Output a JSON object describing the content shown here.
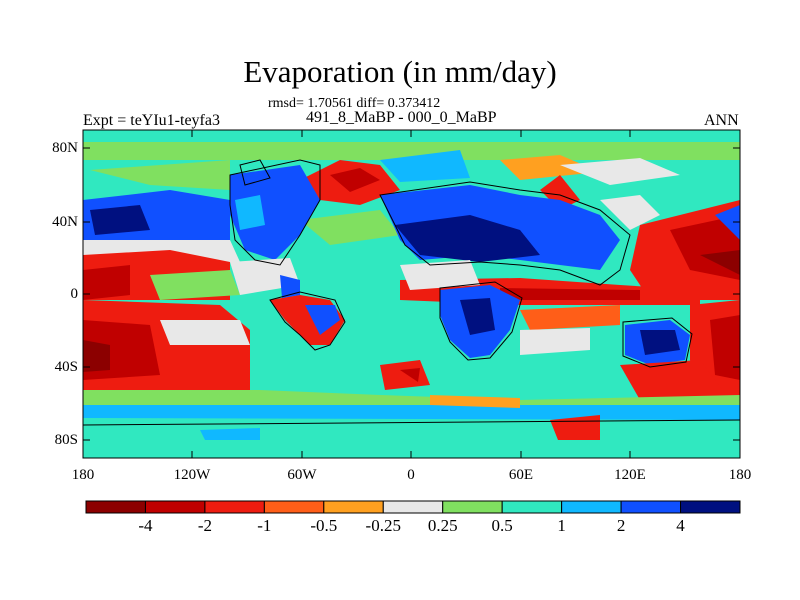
{
  "title": "Evaporation (in mm/day)",
  "stats": "rmsd= 1.70561 diff= 0.373412",
  "experiment": "Expt = teYIu1-teyfa3",
  "period": "491_8_MaBP - 000_0_MaBP",
  "season": "ANN",
  "lat_labels": [
    "80N",
    "40N",
    "0",
    "40S",
    "80S"
  ],
  "lon_labels": [
    "180",
    "120W",
    "60W",
    "0",
    "60E",
    "120E",
    "180"
  ],
  "colorbar": {
    "labels": [
      "-4",
      "-2",
      "-1",
      "-0.5",
      "-0.25",
      "0.25",
      "0.5",
      "1",
      "2",
      "4"
    ],
    "colors": [
      "#8c0000",
      "#c00000",
      "#ee1c10",
      "#ff5e18",
      "#ffa020",
      "#e8e8e8",
      "#80e060",
      "#30e8c0",
      "#10b8ff",
      "#1050ff",
      "#001080"
    ]
  }
}
